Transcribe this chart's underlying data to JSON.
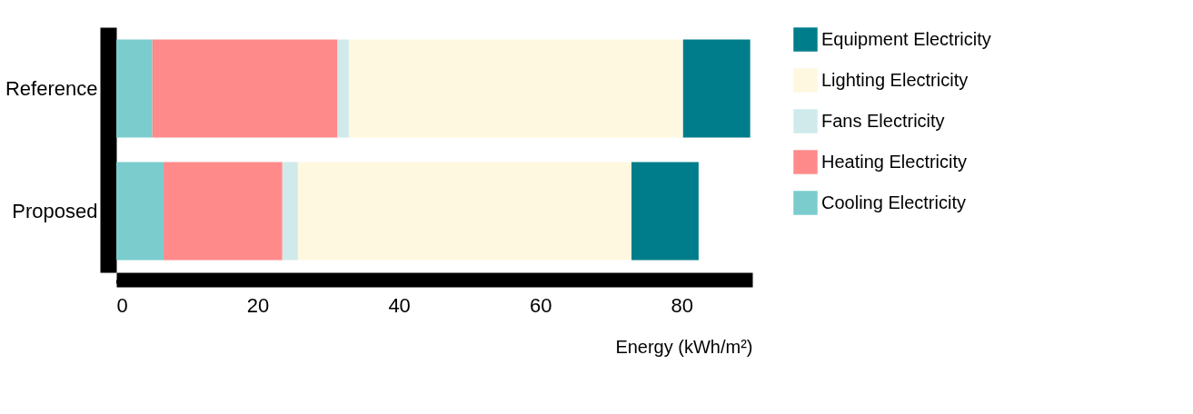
{
  "chart_data": {
    "type": "bar",
    "orientation": "horizontal",
    "stacked": true,
    "categories": [
      "Reference",
      "Proposed"
    ],
    "series": [
      {
        "name": "Cooling Electricity",
        "color": "#7acccd",
        "values": [
          5.1,
          6.7
        ]
      },
      {
        "name": "Heating Electricity",
        "color": "#ff8a8a",
        "values": [
          26.2,
          16.8
        ]
      },
      {
        "name": "Fans Electricity",
        "color": "#d0eaeb",
        "values": [
          1.6,
          2.2
        ]
      },
      {
        "name": "Lighting Electricity",
        "color": "#fef8e1",
        "values": [
          47.3,
          47.2
        ]
      },
      {
        "name": "Equipment Electricity",
        "color": "#007d8a",
        "values": [
          9.5,
          9.5
        ]
      }
    ],
    "xlabel": "Energy (kWh/m²)",
    "xlim": [
      0,
      90
    ],
    "xticks": [
      0,
      20,
      40,
      60,
      80
    ],
    "grid": false,
    "legend": "top right"
  }
}
